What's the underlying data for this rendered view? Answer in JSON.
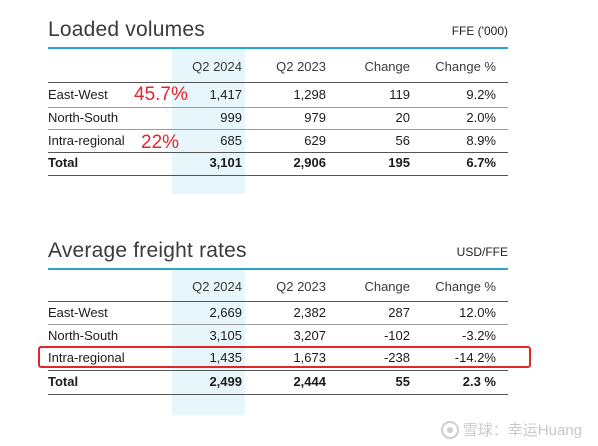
{
  "loaded_volumes": {
    "title": "Loaded volumes",
    "unit": "FFE ('000)",
    "headers": [
      "",
      "Q2 2024",
      "Q2 2023",
      "Change",
      "Change %"
    ],
    "rows": [
      {
        "label": "East-West",
        "q2_2024": "1,417",
        "q2_2023": "1,298",
        "change": "119",
        "change_pct": "9.2%"
      },
      {
        "label": "North-South",
        "q2_2024": "999",
        "q2_2023": "979",
        "change": "20",
        "change_pct": "2.0%"
      },
      {
        "label": "Intra-regional",
        "q2_2024": "685",
        "q2_2023": "629",
        "change": "56",
        "change_pct": "8.9%"
      }
    ],
    "total": {
      "label": "Total",
      "q2_2024": "3,101",
      "q2_2023": "2,906",
      "change": "195",
      "change_pct": "6.7%"
    },
    "annotations": {
      "east_west_share": "45.7%",
      "intra_regional_share": "22%"
    }
  },
  "freight_rates": {
    "title": "Average freight rates",
    "unit": "USD/FFE",
    "headers": [
      "",
      "Q2 2024",
      "Q2 2023",
      "Change",
      "Change %"
    ],
    "rows": [
      {
        "label": "East-West",
        "q2_2024": "2,669",
        "q2_2023": "2,382",
        "change": "287",
        "change_pct": "12.0%"
      },
      {
        "label": "North-South",
        "q2_2024": "3,105",
        "q2_2023": "3,207",
        "change": "-102",
        "change_pct": "-3.2%"
      },
      {
        "label": "Intra-regional",
        "q2_2024": "1,435",
        "q2_2023": "1,673",
        "change": "-238",
        "change_pct": "-14.2%"
      }
    ],
    "total": {
      "label": "Total",
      "q2_2024": "2,499",
      "q2_2023": "2,444",
      "change": "55",
      "change_pct": "2.3 %"
    }
  },
  "highlight": {
    "color": "#e2262a"
  },
  "watermark": {
    "text": "雪球：幸运Huang",
    "icon": "snowball-logo-icon"
  }
}
